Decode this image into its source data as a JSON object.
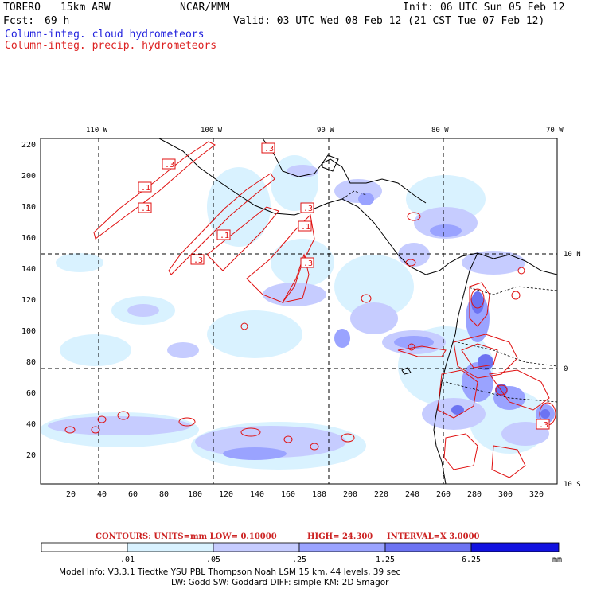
{
  "header": {
    "model_name": "TORERO",
    "model_res": "15km ARW",
    "org": "NCAR/MMM",
    "init": "Init: 06 UTC Sun 05 Feb 12",
    "fcst_label": "Fcst:",
    "fcst_value": "69 h",
    "valid": "Valid: 03 UTC Wed 08 Feb 12 (21 CST Tue 07 Feb 12)",
    "field_cloud": "Column-integ. cloud hydrometeors",
    "field_precip": "Column-integ. precip. hydrometeors"
  },
  "colors": {
    "cloud_text": "#2222dd",
    "precip_text": "#dd2222",
    "shade_1": "#d9f2ff",
    "shade_2": "#c6ccff",
    "shade_3": "#9aa3ff",
    "shade_4": "#6c73f2",
    "shade_5": "#3a3fe6",
    "shade_6": "#1212e0",
    "contour": "#e01010"
  },
  "map": {
    "lon_labels": [
      "110 W",
      "100 W",
      "90 W",
      "80 W",
      "70 W"
    ],
    "lat_labels": [
      "10 N",
      "0",
      "10 S"
    ],
    "y_ticks": [
      "220",
      "200",
      "180",
      "160",
      "140",
      "120",
      "100",
      "80",
      "60",
      "40",
      "20"
    ],
    "x_ticks": [
      "20",
      "40",
      "60",
      "80",
      "100",
      "120",
      "140",
      "160",
      "180",
      "200",
      "220",
      "240",
      "260",
      "280",
      "300",
      "320"
    ],
    "contour_labels": [
      ".3",
      ".3",
      ".1",
      ".1",
      ".1",
      ".3",
      ".3",
      ".1",
      ".3",
      ".3"
    ]
  },
  "contour_info": {
    "contours": "CONTOURS:  UNITS=mm  LOW= 0.10000",
    "high": "HIGH=  24.300",
    "interval": "INTERVAL=X  3.0000"
  },
  "colorbar": {
    "labels": [
      ".01",
      ".05",
      ".25",
      "1.25",
      "6.25"
    ],
    "unit": "mm"
  },
  "model_info": {
    "line1": "Model Info: V3.3.1   Tiedtke YSU PBL  Thompson    Noah LSM  15 km,   44 levels,   39 sec",
    "line2": "LW: Godd SW: Goddard DIFF: simple KM: 2D Smagor"
  }
}
